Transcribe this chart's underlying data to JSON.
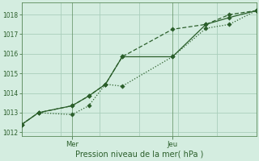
{
  "xlabel": "Pression niveau de la mer( hPa )",
  "background_color": "#d4ede0",
  "grid_color": "#aacfbc",
  "line_color": "#2a5e2a",
  "spine_color": "#5a8a5a",
  "ylim": [
    1011.8,
    1018.6
  ],
  "yticks": [
    1012,
    1013,
    1014,
    1015,
    1016,
    1017,
    1018
  ],
  "xlim_days": [
    0,
    3.5
  ],
  "x_mer_day": 0.75,
  "x_jeu_day": 2.25,
  "series1_x": [
    0.0,
    0.25,
    0.75,
    1.0,
    1.25,
    1.5,
    2.25,
    2.75,
    3.1,
    3.5
  ],
  "series1_y": [
    1012.4,
    1013.0,
    1013.35,
    1013.85,
    1014.45,
    1015.85,
    1015.85,
    1017.5,
    1017.85,
    1018.2
  ],
  "series2_x": [
    0.0,
    0.25,
    0.75,
    1.0,
    1.25,
    1.5,
    2.25,
    2.75,
    3.1,
    3.5
  ],
  "series2_y": [
    1012.4,
    1013.0,
    1012.9,
    1013.35,
    1014.45,
    1014.35,
    1015.85,
    1017.3,
    1017.5,
    1018.2
  ],
  "series3_x": [
    0.0,
    0.25,
    0.75,
    1.0,
    1.25,
    1.5,
    2.25,
    2.75,
    3.1,
    3.5
  ],
  "series3_y": [
    1012.4,
    1013.0,
    1013.35,
    1013.85,
    1014.45,
    1015.85,
    1017.25,
    1017.5,
    1018.0,
    1018.2
  ]
}
